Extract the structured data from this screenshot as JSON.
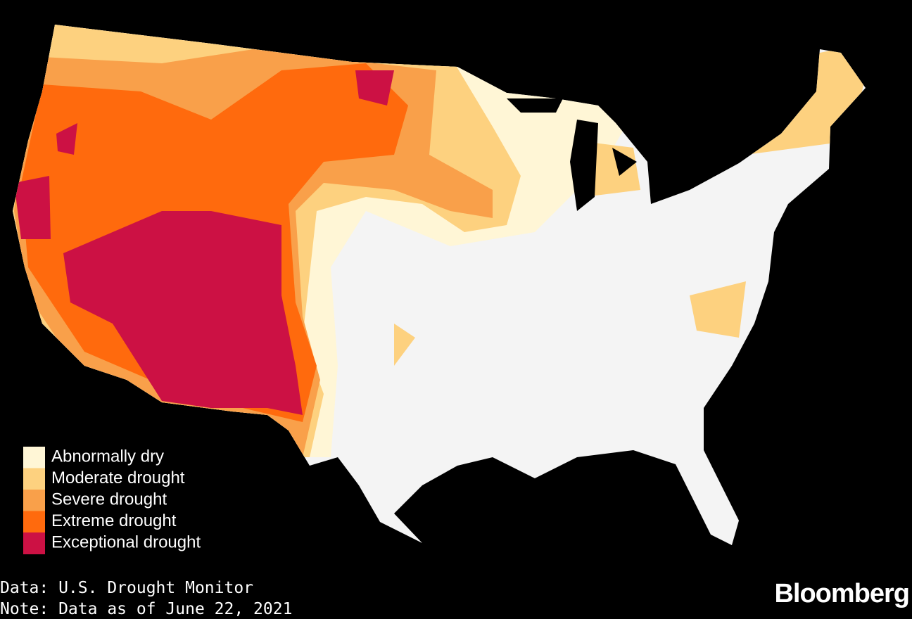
{
  "legend": {
    "items": [
      {
        "label": "Abnormally dry",
        "color": "#fff6d6"
      },
      {
        "label": "Moderate drought",
        "color": "#fdd17f"
      },
      {
        "label": "Severe drought",
        "color": "#f9a04a"
      },
      {
        "label": "Extreme drought",
        "color": "#ff6a0d"
      },
      {
        "label": "Exceptional drought",
        "color": "#cc1144"
      }
    ]
  },
  "footer": {
    "source": "Data: U.S. Drought Monitor",
    "note": "Note: Data as of June 22, 2021",
    "brand": "Bloomberg"
  }
}
